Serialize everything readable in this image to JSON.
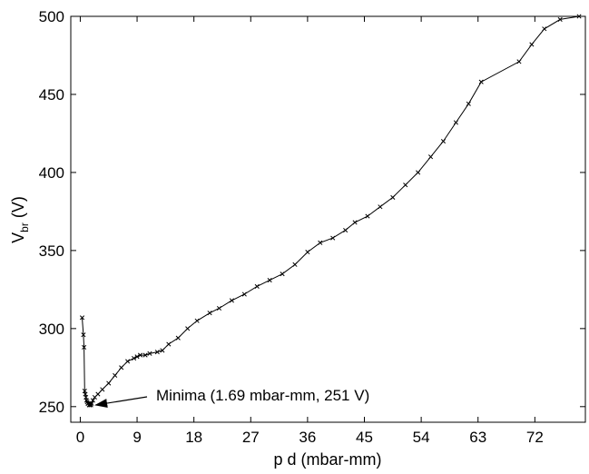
{
  "chart_data": {
    "type": "line",
    "xlabel": "p d (mbar-mm)",
    "ylabel_main": "V",
    "ylabel_sub": "br",
    "ylabel_unit": " (V)",
    "xlim": [
      -1.5,
      80
    ],
    "ylim": [
      240,
      500
    ],
    "xticks": [
      0,
      9,
      18,
      27,
      36,
      45,
      54,
      63,
      72
    ],
    "yticks": [
      250,
      300,
      350,
      400,
      450,
      500
    ],
    "grid": false,
    "legend": "none",
    "marker": "x",
    "line_color": "#000000",
    "series": [
      {
        "x": [
          0.3,
          0.5,
          0.6,
          0.7,
          0.8,
          0.9,
          1.0,
          1.1,
          1.2,
          1.3,
          1.4,
          1.5,
          1.6,
          1.69,
          1.8,
          2.0,
          2.3,
          2.8,
          3.5,
          4.5,
          5.5,
          6.5,
          7.5,
          8.5,
          9.0,
          9.5,
          10.3,
          11.0,
          12.2,
          13.0,
          14.0,
          15.5,
          17.0,
          18.5,
          20.5,
          22.0,
          24.0,
          26.0,
          28.0,
          30.0,
          32.0,
          34.0,
          36.0,
          38.0,
          40.0,
          42.0,
          43.5,
          45.5,
          47.5,
          49.5,
          51.5,
          53.5,
          55.5,
          57.5,
          59.5,
          61.5,
          63.5,
          69.5,
          71.5,
          73.5,
          76.0,
          79.0
        ],
        "y": [
          307,
          296,
          288,
          260,
          258,
          256,
          254,
          253,
          252,
          252,
          251,
          251,
          252,
          251,
          252,
          254,
          256,
          258,
          261,
          265,
          270,
          275,
          279,
          281,
          282,
          283,
          283,
          284,
          285,
          286,
          290,
          294,
          300,
          305,
          310,
          313,
          318,
          322,
          327,
          331,
          335,
          341,
          349,
          355,
          358,
          363,
          368,
          372,
          378,
          384,
          392,
          400,
          410,
          420,
          432,
          444,
          458,
          471,
          482,
          492,
          498,
          500
        ]
      }
    ],
    "annotation": {
      "text": "Minima (1.69 mbar-mm, 251 V)",
      "point": [
        1.69,
        251
      ]
    }
  }
}
